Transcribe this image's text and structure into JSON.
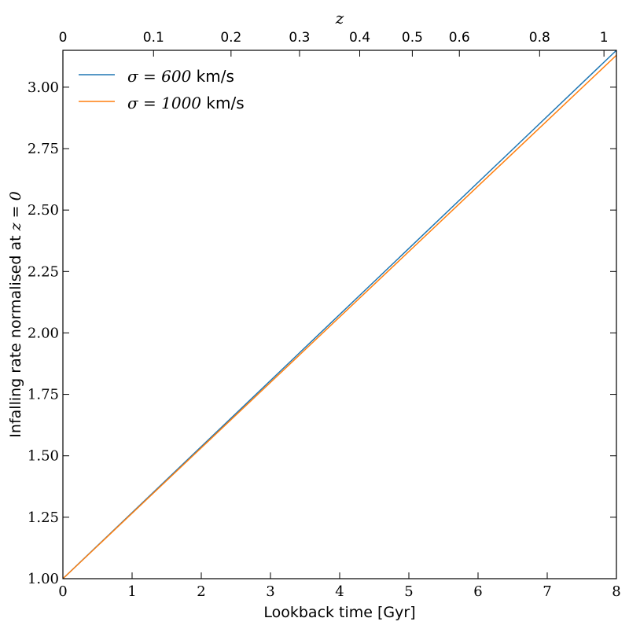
{
  "chart_data": {
    "type": "line",
    "xlabel": "Lookback time [Gyr]",
    "ylabel_prefix": "Infalling rate normalised at ",
    "ylabel_math": "z = 0",
    "top_axis_label": "z",
    "xlim": [
      0,
      8
    ],
    "ylim": [
      1.0,
      3.15
    ],
    "x_ticks": [
      0,
      1,
      2,
      3,
      4,
      5,
      6,
      7,
      8
    ],
    "x_tick_labels": [
      "0",
      "1",
      "2",
      "3",
      "4",
      "5",
      "6",
      "7",
      "8"
    ],
    "y_ticks": [
      1.0,
      1.25,
      1.5,
      1.75,
      2.0,
      2.25,
      2.5,
      2.75,
      3.0
    ],
    "y_tick_labels": [
      "1.00",
      "1.25",
      "1.50",
      "1.75",
      "2.00",
      "2.25",
      "2.50",
      "2.75",
      "3.00"
    ],
    "top_ticks": [
      {
        "label": "0",
        "lookback_gyr": 0.0
      },
      {
        "label": "0.1",
        "lookback_gyr": 1.31
      },
      {
        "label": "0.2",
        "lookback_gyr": 2.43
      },
      {
        "label": "0.3",
        "lookback_gyr": 3.42
      },
      {
        "label": "0.4",
        "lookback_gyr": 4.29
      },
      {
        "label": "0.5",
        "lookback_gyr": 5.05
      },
      {
        "label": "0.6",
        "lookback_gyr": 5.73
      },
      {
        "label": "0.8",
        "lookback_gyr": 6.89
      },
      {
        "label": "1",
        "lookback_gyr": 7.82
      }
    ],
    "series": [
      {
        "name": "σ = 600 km/s",
        "math": "σ = 600",
        "unit": " km/s",
        "color": "#1f77b4",
        "x": [
          0,
          8
        ],
        "y": [
          1.0,
          3.15
        ]
      },
      {
        "name": "σ = 1000 km/s",
        "math": "σ = 1000",
        "unit": " km/s",
        "color": "#ff7f0e",
        "x": [
          0,
          8
        ],
        "y": [
          1.0,
          3.13
        ]
      }
    ],
    "legend_position": "top-left",
    "grid": false
  }
}
